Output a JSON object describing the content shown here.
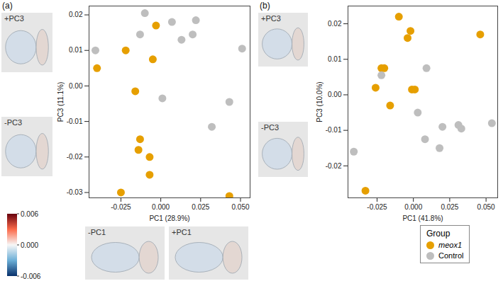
{
  "chart_data": [
    {
      "type": "scatter",
      "title": "(a)",
      "x_label": "PC1 (28.9%)",
      "y_label": "PC3 (11.1%)",
      "xlim": [
        -0.045,
        0.056
      ],
      "ylim": [
        -0.0315,
        0.0225
      ],
      "xticks": [
        -0.025,
        {
          "value": 0,
          "label": "0.000"
        },
        0.025,
        {
          "value": 0.05,
          "label": "0.050"
        }
      ],
      "yticks": [
        0.02,
        0.01,
        {
          "value": 0,
          "label": "0.00"
        },
        -0.01,
        -0.02,
        -0.03
      ],
      "annotations": [
        "+PC3",
        "-PC3",
        "-PC1",
        "+PC1"
      ],
      "color_bar": {
        "range": [
          -0.006,
          0.006
        ],
        "ticks": [
          0.006,
          {
            "value": 0,
            "label": "0.000"
          },
          -0.006
        ]
      },
      "series": [
        {
          "name": "meox1",
          "color": "#E69F00",
          "marker": "circle",
          "x": [
            -0.003,
            -0.022,
            -0.04,
            -0.005,
            -0.016,
            -0.013,
            -0.014,
            -0.007,
            -0.007,
            -0.025,
            0.043
          ],
          "y": [
            0.017,
            0.01,
            0.005,
            0.0075,
            -0.0015,
            -0.015,
            -0.018,
            -0.02,
            -0.025,
            -0.03,
            -0.031
          ]
        },
        {
          "name": "Control",
          "color": "#BEBEBE",
          "marker": "circle",
          "x": [
            -0.041,
            -0.013,
            -0.01,
            0.007,
            0.013,
            0.022,
            0.02,
            0.051,
            0.001,
            0.032,
            0.043
          ],
          "y": [
            0.01,
            0.0145,
            0.0205,
            0.018,
            0.013,
            0.0185,
            0.0145,
            0.0105,
            -0.0035,
            -0.0115,
            -0.0045
          ]
        }
      ]
    },
    {
      "type": "scatter",
      "title": "(b)",
      "x_label": "PC1 (41.8%)",
      "y_label": "PC3 (10.0%)",
      "xlim": [
        -0.045,
        0.058
      ],
      "ylim": [
        -0.029,
        0.025
      ],
      "xticks": [
        -0.025,
        {
          "value": 0,
          "label": "0.000"
        },
        0.025,
        {
          "value": 0.05,
          "label": "0.050"
        }
      ],
      "yticks": [
        0.02,
        0.01,
        {
          "value": 0,
          "label": "0.00"
        },
        -0.01,
        -0.02
      ],
      "annotations": [
        "+PC3",
        "-PC3"
      ],
      "legend": "bottom-right",
      "legend_title": "Group",
      "series": [
        {
          "name": "meox1",
          "color": "#E69F00",
          "marker": "circle",
          "x": [
            -0.01,
            -0.002,
            -0.004,
            0.046,
            -0.02,
            -0.022,
            -0.026,
            -0.001,
            0.001,
            -0.016,
            -0.033
          ],
          "y": [
            0.022,
            0.018,
            0.016,
            0.017,
            0.0075,
            0.0075,
            0.002,
            0.0015,
            0.0015,
            -0.003,
            -0.027
          ]
        },
        {
          "name": "Control",
          "color": "#BEBEBE",
          "marker": "circle",
          "x": [
            -0.022,
            0.009,
            0.003,
            0.008,
            0.018,
            0.02,
            0.031,
            0.033,
            0.054,
            -0.041
          ],
          "y": [
            0.0055,
            0.0075,
            -0.005,
            -0.0125,
            -0.015,
            -0.009,
            -0.0085,
            -0.0095,
            -0.008,
            -0.016
          ]
        }
      ]
    }
  ]
}
